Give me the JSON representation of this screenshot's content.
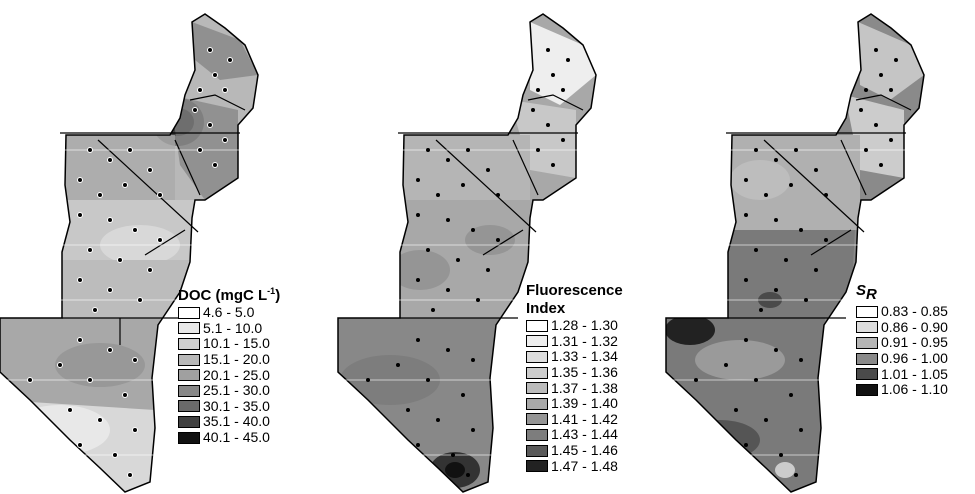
{
  "panels": [
    {
      "id": "doc",
      "legend": {
        "title_main": "DOC (mgC L",
        "title_sup": "-1",
        "title_close": ")",
        "items": [
          {
            "label": "4.6 - 5.0",
            "color": "#ffffff"
          },
          {
            "label": "5.1 - 10.0",
            "color": "#e8e8e8"
          },
          {
            "label": "10.1 - 15.0",
            "color": "#d0d0d0"
          },
          {
            "label": "15.1 - 20.0",
            "color": "#b8b8b8"
          },
          {
            "label": "20.1 - 25.0",
            "color": "#a0a0a0"
          },
          {
            "label": "25.1 - 30.0",
            "color": "#888888"
          },
          {
            "label": "30.1 - 35.0",
            "color": "#6a6a6a"
          },
          {
            "label": "35.1 - 40.0",
            "color": "#404040"
          },
          {
            "label": "40.1 - 45.0",
            "color": "#111111"
          }
        ]
      }
    },
    {
      "id": "fluorescence",
      "legend": {
        "title_line1": "Fluorescence",
        "title_line2": "Index",
        "items": [
          {
            "label": "1.28 - 1.30",
            "color": "#ffffff"
          },
          {
            "label": "1.31 - 1.32",
            "color": "#eeeeee"
          },
          {
            "label": "1.33 - 1.34",
            "color": "#dddddd"
          },
          {
            "label": "1.35 - 1.36",
            "color": "#cccccc"
          },
          {
            "label": "1.37 - 1.38",
            "color": "#bbbbbb"
          },
          {
            "label": "1.39 - 1.40",
            "color": "#a8a8a8"
          },
          {
            "label": "1.41 - 1.42",
            "color": "#959595"
          },
          {
            "label": "1.43 - 1.44",
            "color": "#7d7d7d"
          },
          {
            "label": "1.45 - 1.46",
            "color": "#5a5a5a"
          },
          {
            "label": "1.47 - 1.48",
            "color": "#222222"
          }
        ]
      }
    },
    {
      "id": "sr",
      "legend": {
        "title_main": "S",
        "title_sub": "R",
        "items": [
          {
            "label": "0.83 - 0.85",
            "color": "#ffffff"
          },
          {
            "label": "0.86 - 0.90",
            "color": "#dddddd"
          },
          {
            "label": "0.91 - 0.95",
            "color": "#b5b5b5"
          },
          {
            "label": "0.96 - 1.00",
            "color": "#8a8a8a"
          },
          {
            "label": "1.01 - 1.05",
            "color": "#4a4a4a"
          },
          {
            "label": "1.06 - 1.10",
            "color": "#111111"
          }
        ]
      }
    }
  ]
}
